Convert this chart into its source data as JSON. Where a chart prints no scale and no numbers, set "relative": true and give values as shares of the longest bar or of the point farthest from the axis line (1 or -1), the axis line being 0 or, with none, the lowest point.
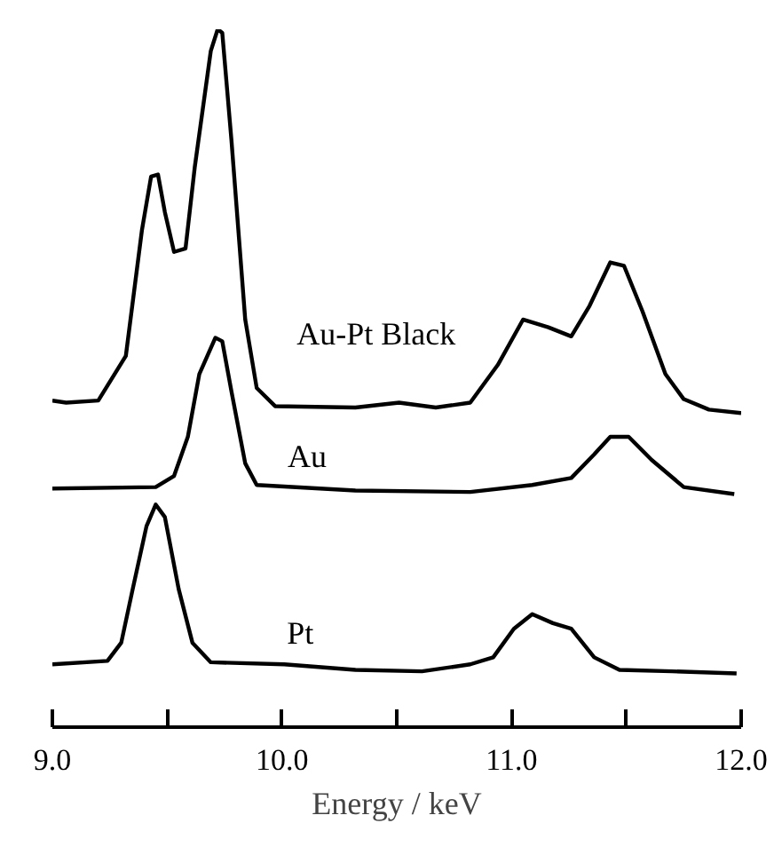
{
  "chart_data": {
    "type": "line",
    "xlabel": "Energy / keV",
    "relative": true,
    "tick_labels": "x",
    "grid": false,
    "legend": false,
    "xlim": [
      9.0,
      12.0
    ],
    "xticks": [
      {
        "value": 9.0,
        "label": "9.0"
      },
      {
        "value": 9.5,
        "label": null
      },
      {
        "value": 10.0,
        "label": "10.0"
      },
      {
        "value": 10.5,
        "label": null
      },
      {
        "value": 11.0,
        "label": "11.0"
      },
      {
        "value": 11.5,
        "label": null
      },
      {
        "value": 12.0,
        "label": "12.0"
      }
    ],
    "series": [
      {
        "name": "Au-Pt Black",
        "color": "#000000",
        "x": [
          9.0,
          9.06,
          9.2,
          9.32,
          9.39,
          9.43,
          9.46,
          9.49,
          9.53,
          9.58,
          9.62,
          9.69,
          9.72,
          9.74,
          9.78,
          9.84,
          9.89,
          9.97,
          10.32,
          10.51,
          10.67,
          10.82,
          10.94,
          11.05,
          11.16,
          11.26,
          11.34,
          11.43,
          11.49,
          11.57,
          11.67,
          11.75,
          11.86,
          12.0
        ],
        "values": [
          0.468,
          0.465,
          0.468,
          0.532,
          0.712,
          0.789,
          0.792,
          0.738,
          0.681,
          0.686,
          0.802,
          0.969,
          1.0,
          0.995,
          0.841,
          0.584,
          0.486,
          0.46,
          0.458,
          0.465,
          0.458,
          0.465,
          0.519,
          0.584,
          0.573,
          0.56,
          0.604,
          0.666,
          0.661,
          0.596,
          0.506,
          0.47,
          0.455,
          0.45
        ]
      },
      {
        "name": "Au",
        "color": "#000000",
        "x": [
          9.0,
          9.45,
          9.53,
          9.59,
          9.64,
          9.71,
          9.74,
          9.78,
          9.84,
          9.89,
          10.32,
          10.82,
          11.09,
          11.26,
          11.36,
          11.43,
          11.51,
          11.61,
          11.75,
          11.97
        ],
        "values": [
          0.342,
          0.344,
          0.36,
          0.416,
          0.506,
          0.558,
          0.553,
          0.481,
          0.378,
          0.347,
          0.339,
          0.337,
          0.347,
          0.357,
          0.391,
          0.416,
          0.416,
          0.383,
          0.344,
          0.334
        ]
      },
      {
        "name": "Pt",
        "color": "#000000",
        "x": [
          9.0,
          9.24,
          9.3,
          9.35,
          9.41,
          9.45,
          9.49,
          9.55,
          9.61,
          9.69,
          10.01,
          10.32,
          10.61,
          10.82,
          10.92,
          11.01,
          11.09,
          11.18,
          11.26,
          11.36,
          11.47,
          11.7,
          11.98
        ],
        "values": [
          0.09,
          0.095,
          0.121,
          0.198,
          0.288,
          0.319,
          0.301,
          0.198,
          0.121,
          0.093,
          0.09,
          0.082,
          0.08,
          0.09,
          0.1,
          0.141,
          0.162,
          0.149,
          0.141,
          0.1,
          0.082,
          0.08,
          0.077
        ]
      }
    ]
  }
}
